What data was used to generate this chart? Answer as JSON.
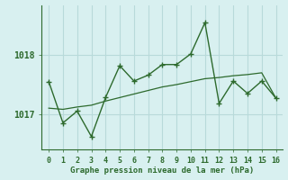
{
  "x": [
    0,
    1,
    2,
    3,
    4,
    5,
    6,
    7,
    8,
    9,
    10,
    11,
    12,
    13,
    14,
    15,
    16
  ],
  "y_jagged": [
    1017.55,
    1016.85,
    1017.05,
    1016.62,
    1017.28,
    1017.82,
    1017.56,
    1017.66,
    1017.84,
    1017.84,
    1018.02,
    1018.55,
    1017.18,
    1017.56,
    1017.35,
    1017.56,
    1017.27
  ],
  "y_smooth": [
    1017.1,
    1017.08,
    1017.12,
    1017.15,
    1017.22,
    1017.28,
    1017.34,
    1017.4,
    1017.46,
    1017.5,
    1017.55,
    1017.6,
    1017.62,
    1017.65,
    1017.67,
    1017.7,
    1017.27
  ],
  "line_color": "#2d6a2d",
  "bg_color": "#d8f0f0",
  "grid_color": "#b8dada",
  "xlabel": "Graphe pression niveau de la mer (hPa)",
  "yticks": [
    1017,
    1018
  ],
  "ylim": [
    1016.4,
    1018.85
  ],
  "xlim": [
    -0.5,
    16.5
  ]
}
